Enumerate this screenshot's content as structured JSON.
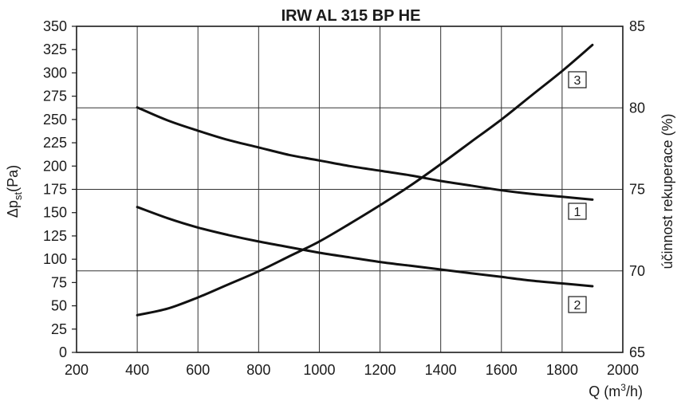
{
  "chart_data": {
    "type": "line",
    "title": "IRW AL 315 BP HE",
    "xlabel": {
      "base": "Q (m",
      "sup": "3",
      "tail": "/h)"
    },
    "ylabel_left": {
      "prefix": "Δp",
      "sub": "st",
      "suffix": "(Pa)"
    },
    "ylabel_right": "účinnost rekuperace (%)",
    "xlim": [
      200,
      2000
    ],
    "ylim_left": [
      0,
      350
    ],
    "ylim_right": [
      65,
      85
    ],
    "x_ticks": [
      200,
      400,
      600,
      800,
      1000,
      1200,
      1400,
      1600,
      1800,
      2000
    ],
    "y_left_ticks": [
      0,
      25,
      50,
      75,
      100,
      125,
      150,
      175,
      200,
      225,
      250,
      275,
      300,
      325,
      350
    ],
    "y_right_ticks": [
      65,
      70,
      75,
      80,
      85
    ],
    "grid": true,
    "series": [
      {
        "name": "1",
        "axis": "left",
        "x": [
          400,
          500,
          600,
          700,
          800,
          900,
          1000,
          1100,
          1200,
          1300,
          1400,
          1500,
          1600,
          1700,
          1800,
          1900
        ],
        "y": [
          263,
          249,
          238,
          228,
          220,
          212,
          206,
          200,
          195,
          190,
          184,
          179,
          174,
          170,
          167,
          164
        ]
      },
      {
        "name": "2",
        "axis": "left",
        "x": [
          400,
          500,
          600,
          700,
          800,
          900,
          1000,
          1100,
          1200,
          1300,
          1400,
          1500,
          1600,
          1700,
          1800,
          1900
        ],
        "y": [
          156,
          144,
          134,
          126,
          119,
          113,
          107,
          102,
          97,
          93,
          89,
          85,
          81,
          77,
          74,
          71
        ]
      },
      {
        "name": "3",
        "axis": "left",
        "x": [
          400,
          500,
          600,
          700,
          800,
          900,
          1000,
          1100,
          1200,
          1300,
          1400,
          1500,
          1600,
          1700,
          1800,
          1900
        ],
        "y": [
          40,
          47,
          59,
          73,
          87,
          103,
          119,
          138,
          158,
          179,
          202,
          226,
          250,
          276,
          302,
          330
        ]
      }
    ]
  }
}
